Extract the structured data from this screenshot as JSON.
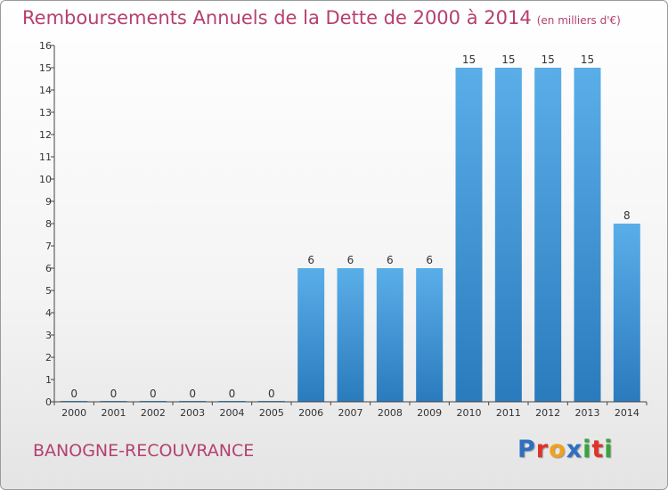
{
  "header": {
    "title": "Remboursements Annuels de la Dette de 2000 à 2014",
    "unit": "(en milliers d'€)"
  },
  "commune": "BANOGNE-RECOUVRANCE",
  "logo": {
    "letters": [
      "P",
      "r",
      "o",
      "x",
      "i",
      "t",
      "i"
    ],
    "colors": [
      "#2e6fc2",
      "#e0322b",
      "#f0a21a",
      "#2e6fc2",
      "#38a33c",
      "#e0322b",
      "#38a33c"
    ]
  },
  "chart_data": {
    "type": "bar",
    "title": "Remboursements Annuels de la Dette de 2000 à 2014",
    "categories": [
      "2000",
      "2001",
      "2002",
      "2003",
      "2004",
      "2005",
      "2006",
      "2007",
      "2008",
      "2009",
      "2010",
      "2011",
      "2012",
      "2013",
      "2014"
    ],
    "values": [
      0,
      0,
      0,
      0,
      0,
      0,
      6,
      6,
      6,
      6,
      15,
      15,
      15,
      15,
      8
    ],
    "value_labels": [
      "0",
      "0",
      "0",
      "0",
      "0",
      "0",
      "6",
      "6",
      "6",
      "6",
      "15",
      "15",
      "15",
      "15",
      "8"
    ],
    "y_ticks": [
      "0",
      "1",
      "2",
      "3",
      "4",
      "5",
      "6",
      "7",
      "8",
      "9",
      "10",
      "11",
      "12",
      "13",
      "14",
      "15",
      "16"
    ],
    "ylim": [
      0,
      16
    ],
    "grid": false,
    "bar_color": "#3f97d8"
  }
}
